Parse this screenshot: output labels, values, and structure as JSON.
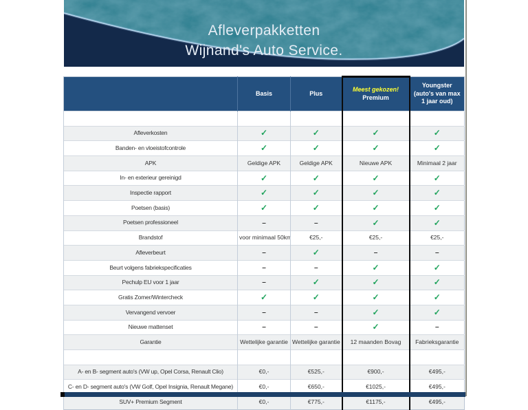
{
  "banner": {
    "title_line1": "Afleverpakketten",
    "title_line2": "Wijnand's Auto Service."
  },
  "symbols": {
    "check": "✓",
    "dash": "–"
  },
  "colors": {
    "table_header_blue": "#24507f",
    "banner_navy": "#13294a",
    "banner_teal": "#1a5570",
    "swoosh_blue": "#bcd9f0",
    "check_green": "#1fa35c",
    "badge_yellow": "#ffff33",
    "stripe_gray": "#eef0f1"
  },
  "table": {
    "column_keys": [
      "basis",
      "plus",
      "premium",
      "youngster"
    ],
    "columns": [
      {
        "label": ""
      },
      {
        "label": "Basis"
      },
      {
        "label": "Plus"
      },
      {
        "badge": "Meest gekozen!",
        "label": "Premium",
        "highlight": true
      },
      {
        "label": "Youngster (auto's van max 1 jaar oud)"
      }
    ],
    "rows": [
      {
        "label": "",
        "values": [
          "",
          "",
          "",
          ""
        ]
      },
      {
        "label": "Afleverkosten",
        "values": [
          "check",
          "check",
          "check",
          "check"
        ]
      },
      {
        "label": "Banden- en vloeistofcontrole",
        "values": [
          "check",
          "check",
          "check",
          "check"
        ]
      },
      {
        "label": "APK",
        "values": [
          "Geldige APK",
          "Geldige APK",
          "Nieuwe APK",
          "Minimaal 2 jaar"
        ]
      },
      {
        "label": "In- en exterieur gereinigd",
        "values": [
          "check",
          "check",
          "check",
          "check"
        ]
      },
      {
        "label": "Inspectie rapport",
        "values": [
          "check",
          "check",
          "check",
          "check"
        ]
      },
      {
        "label": "Poetsen (basis)",
        "values": [
          "check",
          "check",
          "check",
          "check"
        ]
      },
      {
        "label": "Poetsen professioneel",
        "values": [
          "dash",
          "dash",
          "check",
          "check"
        ]
      },
      {
        "label": "Brandstof",
        "values": [
          "voor minimaal 50km",
          "€25,-",
          "€25,-",
          "€25,-"
        ]
      },
      {
        "label": "Afleverbeurt",
        "values": [
          "dash",
          "check",
          "dash",
          "dash"
        ]
      },
      {
        "label": "Beurt volgens fabriekspecificaties",
        "values": [
          "dash",
          "dash",
          "check",
          "check"
        ]
      },
      {
        "label": "Pechulp EU voor 1 jaar",
        "values": [
          "dash",
          "check",
          "check",
          "check"
        ]
      },
      {
        "label": "Gratis Zomer/Wintercheck",
        "values": [
          "check",
          "check",
          "check",
          "check"
        ]
      },
      {
        "label": "Vervangend vervoer",
        "values": [
          "dash",
          "dash",
          "check",
          "check"
        ]
      },
      {
        "label": "Nieuwe mattenset",
        "values": [
          "dash",
          "dash",
          "check",
          "dash"
        ]
      },
      {
        "label": "Garantie",
        "values": [
          "Wettelijke garantie",
          "Wettelijke garantie",
          "12 maanden Bovag",
          "Fabrieksgarantie"
        ]
      },
      {
        "label": "",
        "values": [
          "",
          "",
          "",
          ""
        ]
      },
      {
        "label": "A- en B- segment auto's (VW up, Opel Corsa, Renault Clio)",
        "values": [
          "€0,-",
          "€525,-",
          "€900,-",
          "€495,-"
        ]
      },
      {
        "label": "C- en D- segment auto's (VW Golf, Opel Insignia, Renault Megane)",
        "values": [
          "€0,-",
          "€650,-",
          "€1025,-",
          "€495,-"
        ]
      },
      {
        "label": "SUV+ Premium Segment",
        "values": [
          "€0,-",
          "€775,-",
          "€1175,-",
          "€495,-"
        ]
      }
    ]
  }
}
